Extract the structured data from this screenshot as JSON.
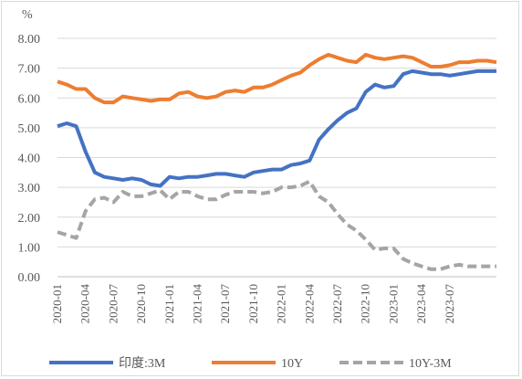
{
  "chart_data": {
    "type": "line",
    "unit_label": "%",
    "ylim": [
      0,
      8
    ],
    "y_ticks": [
      "0.00",
      "1.00",
      "2.00",
      "3.00",
      "4.00",
      "5.00",
      "6.00",
      "7.00",
      "8.00"
    ],
    "x_range": [
      "2020-01",
      "2023-12"
    ],
    "x_ticks": [
      "2020-01",
      "2020-04",
      "2020-07",
      "2020-10",
      "2021-01",
      "2021-04",
      "2021-07",
      "2021-10",
      "2022-01",
      "2022-04",
      "2022-07",
      "2022-10",
      "2023-01",
      "2023-04",
      "2023-07"
    ],
    "grid": true,
    "legend_position": "bottom",
    "series": [
      {
        "name": "印度:3M",
        "color": "#4472c4",
        "style": "solid",
        "points": [
          [
            "2020-01",
            5.05
          ],
          [
            "2020-02",
            5.15
          ],
          [
            "2020-03",
            5.05
          ],
          [
            "2020-04",
            4.2
          ],
          [
            "2020-05",
            3.5
          ],
          [
            "2020-06",
            3.35
          ],
          [
            "2020-07",
            3.3
          ],
          [
            "2020-08",
            3.25
          ],
          [
            "2020-09",
            3.3
          ],
          [
            "2020-10",
            3.25
          ],
          [
            "2020-11",
            3.1
          ],
          [
            "2020-12",
            3.05
          ],
          [
            "2021-01",
            3.35
          ],
          [
            "2021-02",
            3.3
          ],
          [
            "2021-03",
            3.35
          ],
          [
            "2021-04",
            3.35
          ],
          [
            "2021-05",
            3.4
          ],
          [
            "2021-06",
            3.45
          ],
          [
            "2021-07",
            3.45
          ],
          [
            "2021-08",
            3.4
          ],
          [
            "2021-09",
            3.35
          ],
          [
            "2021-10",
            3.5
          ],
          [
            "2021-11",
            3.55
          ],
          [
            "2021-12",
            3.6
          ],
          [
            "2022-01",
            3.6
          ],
          [
            "2022-02",
            3.75
          ],
          [
            "2022-03",
            3.8
          ],
          [
            "2022-04",
            3.9
          ],
          [
            "2022-05",
            4.6
          ],
          [
            "2022-06",
            4.95
          ],
          [
            "2022-07",
            5.25
          ],
          [
            "2022-08",
            5.5
          ],
          [
            "2022-09",
            5.65
          ],
          [
            "2022-10",
            6.2
          ],
          [
            "2022-11",
            6.45
          ],
          [
            "2022-12",
            6.35
          ],
          [
            "2023-01",
            6.4
          ],
          [
            "2023-02",
            6.8
          ],
          [
            "2023-03",
            6.9
          ],
          [
            "2023-04",
            6.85
          ],
          [
            "2023-05",
            6.8
          ],
          [
            "2023-06",
            6.8
          ],
          [
            "2023-07",
            6.75
          ],
          [
            "2023-08",
            6.8
          ],
          [
            "2023-09",
            6.85
          ],
          [
            "2023-10",
            6.9
          ],
          [
            "2023-11",
            6.9
          ],
          [
            "2023-12",
            6.9
          ]
        ]
      },
      {
        "name": "10Y",
        "color": "#ed7d31",
        "style": "solid",
        "points": [
          [
            "2020-01",
            6.55
          ],
          [
            "2020-02",
            6.45
          ],
          [
            "2020-03",
            6.3
          ],
          [
            "2020-04",
            6.3
          ],
          [
            "2020-05",
            6.0
          ],
          [
            "2020-06",
            5.85
          ],
          [
            "2020-07",
            5.85
          ],
          [
            "2020-08",
            6.05
          ],
          [
            "2020-09",
            6.0
          ],
          [
            "2020-10",
            5.95
          ],
          [
            "2020-11",
            5.9
          ],
          [
            "2020-12",
            5.95
          ],
          [
            "2021-01",
            5.95
          ],
          [
            "2021-02",
            6.15
          ],
          [
            "2021-03",
            6.2
          ],
          [
            "2021-04",
            6.05
          ],
          [
            "2021-05",
            6.0
          ],
          [
            "2021-06",
            6.05
          ],
          [
            "2021-07",
            6.2
          ],
          [
            "2021-08",
            6.25
          ],
          [
            "2021-09",
            6.2
          ],
          [
            "2021-10",
            6.35
          ],
          [
            "2021-11",
            6.35
          ],
          [
            "2021-12",
            6.45
          ],
          [
            "2022-01",
            6.6
          ],
          [
            "2022-02",
            6.75
          ],
          [
            "2022-03",
            6.85
          ],
          [
            "2022-04",
            7.1
          ],
          [
            "2022-05",
            7.3
          ],
          [
            "2022-06",
            7.45
          ],
          [
            "2022-07",
            7.35
          ],
          [
            "2022-08",
            7.25
          ],
          [
            "2022-09",
            7.2
          ],
          [
            "2022-10",
            7.45
          ],
          [
            "2022-11",
            7.35
          ],
          [
            "2022-12",
            7.3
          ],
          [
            "2023-01",
            7.35
          ],
          [
            "2023-02",
            7.4
          ],
          [
            "2023-03",
            7.35
          ],
          [
            "2023-04",
            7.2
          ],
          [
            "2023-05",
            7.05
          ],
          [
            "2023-06",
            7.05
          ],
          [
            "2023-07",
            7.1
          ],
          [
            "2023-08",
            7.2
          ],
          [
            "2023-09",
            7.2
          ],
          [
            "2023-10",
            7.25
          ],
          [
            "2023-11",
            7.25
          ],
          [
            "2023-12",
            7.2
          ]
        ]
      },
      {
        "name": "10Y-3M",
        "color": "#a5a5a5",
        "style": "dashed",
        "points": [
          [
            "2020-01",
            1.5
          ],
          [
            "2020-02",
            1.4
          ],
          [
            "2020-03",
            1.3
          ],
          [
            "2020-04",
            2.2
          ],
          [
            "2020-05",
            2.6
          ],
          [
            "2020-06",
            2.65
          ],
          [
            "2020-07",
            2.5
          ],
          [
            "2020-08",
            2.85
          ],
          [
            "2020-09",
            2.7
          ],
          [
            "2020-10",
            2.7
          ],
          [
            "2020-11",
            2.8
          ],
          [
            "2020-12",
            2.9
          ],
          [
            "2021-01",
            2.6
          ],
          [
            "2021-02",
            2.85
          ],
          [
            "2021-03",
            2.85
          ],
          [
            "2021-04",
            2.7
          ],
          [
            "2021-05",
            2.6
          ],
          [
            "2021-06",
            2.6
          ],
          [
            "2021-07",
            2.75
          ],
          [
            "2021-08",
            2.85
          ],
          [
            "2021-09",
            2.85
          ],
          [
            "2021-10",
            2.85
          ],
          [
            "2021-11",
            2.8
          ],
          [
            "2021-12",
            2.85
          ],
          [
            "2022-01",
            3.0
          ],
          [
            "2022-02",
            3.0
          ],
          [
            "2022-03",
            3.05
          ],
          [
            "2022-04",
            3.2
          ],
          [
            "2022-05",
            2.7
          ],
          [
            "2022-06",
            2.5
          ],
          [
            "2022-07",
            2.1
          ],
          [
            "2022-08",
            1.75
          ],
          [
            "2022-09",
            1.55
          ],
          [
            "2022-10",
            1.25
          ],
          [
            "2022-11",
            0.9
          ],
          [
            "2022-12",
            0.95
          ],
          [
            "2023-01",
            0.95
          ],
          [
            "2023-02",
            0.6
          ],
          [
            "2023-03",
            0.45
          ],
          [
            "2023-04",
            0.35
          ],
          [
            "2023-05",
            0.25
          ],
          [
            "2023-06",
            0.25
          ],
          [
            "2023-07",
            0.35
          ],
          [
            "2023-08",
            0.4
          ],
          [
            "2023-09",
            0.35
          ],
          [
            "2023-10",
            0.35
          ],
          [
            "2023-11",
            0.35
          ],
          [
            "2023-12",
            0.35
          ]
        ]
      }
    ]
  }
}
